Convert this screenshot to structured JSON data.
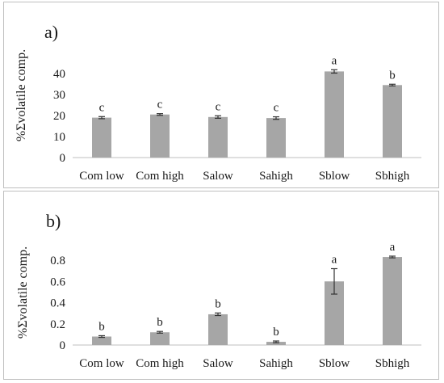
{
  "chart_data": [
    {
      "type": "bar",
      "panel_label": "a)",
      "ylabel": "%Σvolatile comp.",
      "categories": [
        "Com low",
        "Com high",
        "Salow",
        "Sahigh",
        "Sblow",
        "Sbhigh"
      ],
      "values": [
        19,
        20.5,
        19.3,
        18.8,
        41,
        34.5
      ],
      "errors": [
        0.5,
        0.4,
        0.6,
        0.6,
        0.8,
        0.4
      ],
      "letters": [
        "c",
        "c",
        "c",
        "c",
        "a",
        "b"
      ],
      "ylim": [
        0,
        40
      ],
      "yticks": [
        0,
        10,
        20,
        30,
        40
      ],
      "ytick_labels": [
        "0",
        "10",
        "20",
        "30",
        "40"
      ],
      "bar_color": "#a6a6a6",
      "grid": false
    },
    {
      "type": "bar",
      "panel_label": "b)",
      "ylabel": "%Σvolatile comp.",
      "categories": [
        "Com low",
        "Com high",
        "Salow",
        "Sahigh",
        "Sblow",
        "Sbhigh"
      ],
      "values": [
        0.08,
        0.12,
        0.29,
        0.03,
        0.6,
        0.83
      ],
      "errors": [
        0.008,
        0.008,
        0.012,
        0.008,
        0.12,
        0.008
      ],
      "letters": [
        "b",
        "b",
        "b",
        "b",
        "a",
        "a"
      ],
      "ylim": [
        0,
        0.8
      ],
      "yticks": [
        0,
        0.2,
        0.4,
        0.6,
        0.8
      ],
      "ytick_labels": [
        "0",
        "0.2",
        "0.4",
        "0.6",
        "0.8"
      ],
      "bar_color": "#a6a6a6",
      "grid": false
    }
  ]
}
